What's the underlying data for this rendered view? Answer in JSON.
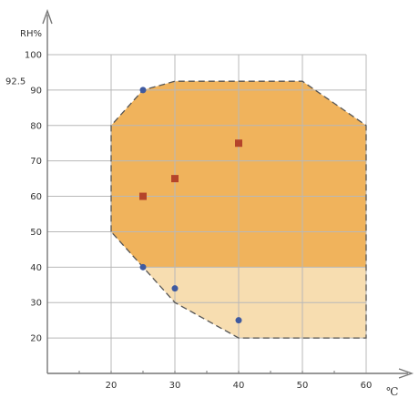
{
  "chart_data": {
    "type": "scatter",
    "title": "",
    "xlabel": "℃",
    "ylabel": "RH%",
    "xlim": [
      10,
      60
    ],
    "ylim": [
      10,
      100
    ],
    "x_ticks": [
      20,
      30,
      40,
      50,
      60
    ],
    "y_ticks": [
      20,
      30,
      40,
      50,
      60,
      70,
      80,
      90,
      100
    ],
    "y_extra_tick": {
      "value": 92.5,
      "label": "92.5"
    },
    "grid": true,
    "regions": [
      {
        "name": "",
        "fill": "#f7ddb0",
        "polygon": [
          [
            25,
            40
          ],
          [
            60,
            40
          ],
          [
            60,
            20
          ],
          [
            40,
            20
          ],
          [
            30,
            30
          ]
        ]
      },
      {
        "name": "",
        "fill": "#f0b35c",
        "polygon": [
          [
            20,
            50
          ],
          [
            20,
            80
          ],
          [
            25,
            90
          ],
          [
            30,
            92.5
          ],
          [
            50,
            92.5
          ],
          [
            60,
            80
          ],
          [
            60,
            40
          ],
          [
            25,
            40
          ]
        ]
      }
    ],
    "boundary": {
      "color": "#555555",
      "style": "dashed",
      "polygon": [
        [
          20,
          50
        ],
        [
          20,
          80
        ],
        [
          25,
          90
        ],
        [
          30,
          92.5
        ],
        [
          50,
          92.5
        ],
        [
          60,
          80
        ],
        [
          60,
          20
        ],
        [
          40,
          20
        ],
        [
          30,
          30
        ],
        [
          25,
          40
        ]
      ]
    },
    "series": [
      {
        "marker": "square",
        "color": "#b5442a",
        "points": [
          [
            25,
            60
          ],
          [
            30,
            65
          ],
          [
            40,
            75
          ]
        ]
      },
      {
        "marker": "circle",
        "color": "#3f5aa0",
        "points": [
          [
            25,
            90
          ],
          [
            25,
            40
          ],
          [
            30,
            34
          ],
          [
            40,
            25
          ]
        ]
      }
    ]
  }
}
